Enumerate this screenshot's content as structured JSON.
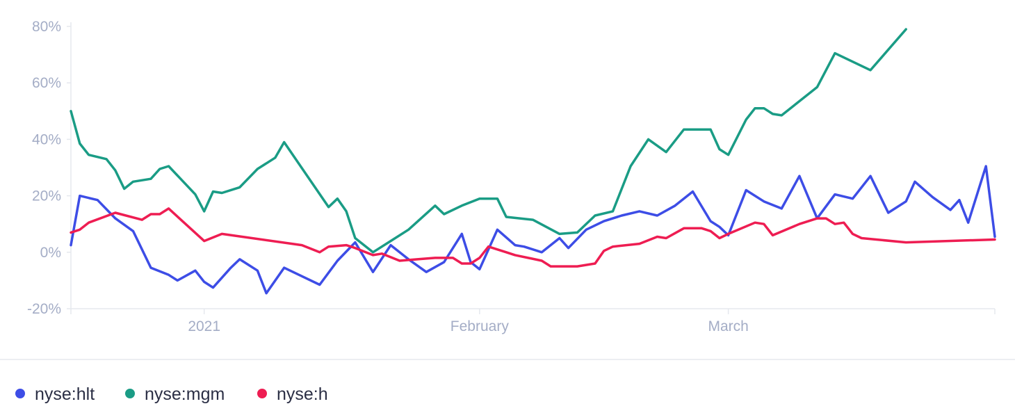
{
  "chart_data": {
    "type": "line",
    "title": "",
    "xlabel": "",
    "ylabel": "",
    "ylim": [
      -20,
      80
    ],
    "y_ticks": [
      {
        "value": -20,
        "label": "-20%"
      },
      {
        "value": 0,
        "label": "0%"
      },
      {
        "value": 20,
        "label": "20%"
      },
      {
        "value": 40,
        "label": "40%"
      },
      {
        "value": 60,
        "label": "60%"
      },
      {
        "value": 80,
        "label": "80%"
      }
    ],
    "xlim": [
      "2020-12-17",
      "2021-03-31"
    ],
    "x_ticks": [
      {
        "value": "2021-01-01",
        "label": "2021"
      },
      {
        "value": "2021-02-01",
        "label": "February"
      },
      {
        "value": "2021-03-01",
        "label": "March"
      }
    ],
    "grid": false,
    "legend_position": "bottom-left",
    "series": [
      {
        "name": "nyse:hlt",
        "color": "#3d4de6",
        "points": [
          [
            "2020-12-17",
            2.5
          ],
          [
            "2020-12-18",
            20
          ],
          [
            "2020-12-20",
            18.5
          ],
          [
            "2020-12-22",
            12
          ],
          [
            "2020-12-22",
            12
          ],
          [
            "2020-12-24",
            7.5
          ],
          [
            "2020-12-26",
            -5.5
          ],
          [
            "2020-12-28",
            -8
          ],
          [
            "2020-12-29",
            -10
          ],
          [
            "2020-12-31",
            -6.5
          ],
          [
            "2021-01-01",
            -10.5
          ],
          [
            "2021-01-02",
            -12.5
          ],
          [
            "2021-01-04",
            -5.5
          ],
          [
            "2021-01-05",
            -2.5
          ],
          [
            "2021-01-07",
            -6.5
          ],
          [
            "2021-01-08",
            -14.5
          ],
          [
            "2021-01-10",
            -5.5
          ],
          [
            "2021-01-12",
            -8.5
          ],
          [
            "2021-01-14",
            -11.5
          ],
          [
            "2021-01-16",
            -3
          ],
          [
            "2021-01-18",
            3.5
          ],
          [
            "2021-01-20",
            -7
          ],
          [
            "2021-01-22",
            2.5
          ],
          [
            "2021-01-24",
            -2.5
          ],
          [
            "2021-01-26",
            -7
          ],
          [
            "2021-01-28",
            -3.5
          ],
          [
            "2021-01-30",
            6.5
          ],
          [
            "2021-01-31",
            -3.5
          ],
          [
            "2021-02-01",
            -6
          ],
          [
            "2021-02-03",
            8
          ],
          [
            "2021-02-05",
            2.5
          ],
          [
            "2021-02-06",
            2
          ],
          [
            "2021-02-08",
            0
          ],
          [
            "2021-02-10",
            5
          ],
          [
            "2021-02-11",
            1.5
          ],
          [
            "2021-02-13",
            8
          ],
          [
            "2021-02-15",
            11
          ],
          [
            "2021-02-17",
            13
          ],
          [
            "2021-02-19",
            14.5
          ],
          [
            "2021-02-21",
            13
          ],
          [
            "2021-02-23",
            16.5
          ],
          [
            "2021-02-25",
            21.5
          ],
          [
            "2021-02-27",
            11
          ],
          [
            "2021-02-28",
            9
          ],
          [
            "2021-03-01",
            6
          ],
          [
            "2021-03-03",
            22
          ],
          [
            "2021-03-05",
            18
          ],
          [
            "2021-03-07",
            15.5
          ],
          [
            "2021-03-09",
            27
          ],
          [
            "2021-03-11",
            12
          ],
          [
            "2021-03-13",
            20.5
          ],
          [
            "2021-03-15",
            19
          ],
          [
            "2021-03-17",
            27
          ],
          [
            "2021-03-19",
            14
          ],
          [
            "2021-03-21",
            18
          ],
          [
            "2021-03-22",
            25
          ],
          [
            "2021-03-24",
            19.5
          ],
          [
            "2021-03-26",
            15
          ],
          [
            "2021-03-27",
            18.5
          ],
          [
            "2021-03-28",
            10.5
          ],
          [
            "2021-03-30",
            30.5
          ],
          [
            "2021-03-31",
            5.5
          ]
        ]
      },
      {
        "name": "nyse:mgm",
        "color": "#1a9c85",
        "points": [
          [
            "2020-12-17",
            50
          ],
          [
            "2020-12-18",
            38.5
          ],
          [
            "2020-12-19",
            34.5
          ],
          [
            "2020-12-21",
            33
          ],
          [
            "2020-12-22",
            29
          ],
          [
            "2020-12-23",
            22.5
          ],
          [
            "2020-12-24",
            25
          ],
          [
            "2020-12-26",
            26
          ],
          [
            "2020-12-27",
            29.5
          ],
          [
            "2020-12-28",
            30.5
          ],
          [
            "2020-12-31",
            20.5
          ],
          [
            "2021-01-01",
            14.5
          ],
          [
            "2021-01-02",
            21.5
          ],
          [
            "2021-01-03",
            21
          ],
          [
            "2021-01-05",
            23
          ],
          [
            "2021-01-07",
            29.5
          ],
          [
            "2021-01-09",
            33.5
          ],
          [
            "2021-01-10",
            39
          ],
          [
            "2021-01-15",
            16
          ],
          [
            "2021-01-16",
            19
          ],
          [
            "2021-01-17",
            14.5
          ],
          [
            "2021-01-18",
            5
          ],
          [
            "2021-01-20",
            0
          ],
          [
            "2021-01-22",
            4
          ],
          [
            "2021-01-24",
            8
          ],
          [
            "2021-01-27",
            16.5
          ],
          [
            "2021-01-28",
            13.5
          ],
          [
            "2021-01-30",
            16.5
          ],
          [
            "2021-02-01",
            19
          ],
          [
            "2021-02-03",
            19
          ],
          [
            "2021-02-04",
            12.5
          ],
          [
            "2021-02-07",
            11.5
          ],
          [
            "2021-02-10",
            6.5
          ],
          [
            "2021-02-12",
            7
          ],
          [
            "2021-02-14",
            13
          ],
          [
            "2021-02-16",
            14.5
          ],
          [
            "2021-02-18",
            30.5
          ],
          [
            "2021-02-20",
            40
          ],
          [
            "2021-02-22",
            35.5
          ],
          [
            "2021-02-24",
            43.5
          ],
          [
            "2021-02-27",
            43.5
          ],
          [
            "2021-02-28",
            36.5
          ],
          [
            "2021-03-01",
            34.5
          ],
          [
            "2021-03-03",
            47
          ],
          [
            "2021-03-04",
            51
          ],
          [
            "2021-03-05",
            51
          ],
          [
            "2021-03-06",
            49
          ],
          [
            "2021-03-07",
            48.5
          ],
          [
            "2021-03-11",
            58.5
          ],
          [
            "2021-03-13",
            70.5
          ],
          [
            "2021-03-17",
            64.5
          ],
          [
            "2021-03-21",
            79
          ]
        ]
      },
      {
        "name": "nyse:h",
        "color": "#ee1d52",
        "points": [
          [
            "2020-12-17",
            7
          ],
          [
            "2020-12-18",
            8
          ],
          [
            "2020-12-19",
            10.5
          ],
          [
            "2020-12-22",
            14
          ],
          [
            "2020-12-25",
            11.5
          ],
          [
            "2020-12-26",
            13.5
          ],
          [
            "2020-12-27",
            13.5
          ],
          [
            "2020-12-28",
            15.5
          ],
          [
            "2021-01-01",
            4
          ],
          [
            "2021-01-03",
            6.5
          ],
          [
            "2021-01-12",
            2.5
          ],
          [
            "2021-01-14",
            0
          ],
          [
            "2021-01-15",
            2
          ],
          [
            "2021-01-17",
            2.5
          ],
          [
            "2021-01-18",
            1.5
          ],
          [
            "2021-01-20",
            -1
          ],
          [
            "2021-01-21",
            -0.5
          ],
          [
            "2021-01-23",
            -3
          ],
          [
            "2021-01-25",
            -2.5
          ],
          [
            "2021-01-27",
            -2
          ],
          [
            "2021-01-29",
            -2
          ],
          [
            "2021-01-30",
            -4
          ],
          [
            "2021-01-31",
            -4
          ],
          [
            "2021-02-01",
            -2
          ],
          [
            "2021-02-02",
            2
          ],
          [
            "2021-02-04",
            0
          ],
          [
            "2021-02-05",
            -1
          ],
          [
            "2021-02-08",
            -3
          ],
          [
            "2021-02-09",
            -5
          ],
          [
            "2021-02-12",
            -5
          ],
          [
            "2021-02-14",
            -4
          ],
          [
            "2021-02-15",
            0.5
          ],
          [
            "2021-02-16",
            2
          ],
          [
            "2021-02-19",
            3
          ],
          [
            "2021-02-21",
            5.5
          ],
          [
            "2021-02-22",
            5
          ],
          [
            "2021-02-24",
            8.5
          ],
          [
            "2021-02-26",
            8.5
          ],
          [
            "2021-02-27",
            7.5
          ],
          [
            "2021-02-28",
            5
          ],
          [
            "2021-03-01",
            6.5
          ],
          [
            "2021-03-04",
            10.5
          ],
          [
            "2021-03-05",
            10
          ],
          [
            "2021-03-06",
            6
          ],
          [
            "2021-03-09",
            10
          ],
          [
            "2021-03-11",
            12
          ],
          [
            "2021-03-12",
            12
          ],
          [
            "2021-03-13",
            10
          ],
          [
            "2021-03-14",
            10.5
          ],
          [
            "2021-03-15",
            6.5
          ],
          [
            "2021-03-16",
            5
          ],
          [
            "2021-03-21",
            3.5
          ],
          [
            "2021-03-31",
            4.5
          ]
        ]
      }
    ]
  }
}
